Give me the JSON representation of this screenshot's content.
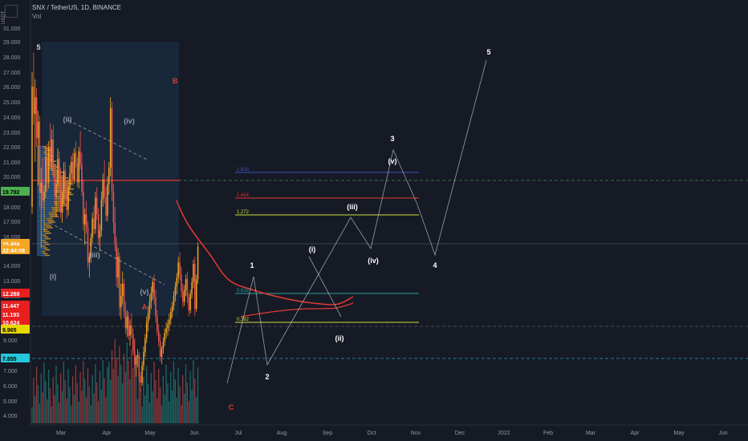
{
  "header": {
    "title": "SNX / TetherUS, 1D, BINANCE",
    "volume_label": "Vol",
    "currency": "USDT"
  },
  "chart_data": {
    "type": "candlestick",
    "symbol": "SNX / TetherUS",
    "interval": "1D",
    "exchange": "BINANCE",
    "x_axis": {
      "ticks": [
        "Mar",
        "Apr",
        "May",
        "Jun",
        "Jul",
        "Aug",
        "Sep",
        "Oct",
        "Nov",
        "Dec",
        "2022",
        "Feb",
        "Mar",
        "Apr",
        "May",
        "Jun"
      ]
    },
    "y_axis": {
      "ticks": [
        "31.000",
        "29.000",
        "28.000",
        "27.000",
        "26.000",
        "25.000",
        "24.000",
        "23.000",
        "22.000",
        "21.000",
        "20.000",
        "19.000",
        "18.000",
        "17.000",
        "16.000",
        "14.000",
        "13.000",
        "12.000",
        "11.000",
        "10.000",
        "9.000",
        "8.000",
        "7.000",
        "6.000",
        "5.000",
        "4.000"
      ]
    },
    "price_tags": [
      {
        "value": "19.792",
        "color": "#4caf50"
      },
      {
        "value": "15.494",
        "color": "#f5a623"
      },
      {
        "value": "22:44:08",
        "color": "#f5a623"
      },
      {
        "value": "12.268",
        "color": "#e91e1e"
      },
      {
        "value": "11.447",
        "color": "#e91e1e"
      },
      {
        "value": "11.193",
        "color": "#e91e1e"
      },
      {
        "value": "10.624",
        "color": "#e91e1e"
      },
      {
        "value": "9.965",
        "color": "#e6d800"
      },
      {
        "value": "7.855",
        "color": "#26c6da"
      }
    ],
    "fib_levels": [
      {
        "label": "1.618",
        "color": "#3f51b5"
      },
      {
        "label": "1.414",
        "color": "#e53935"
      },
      {
        "label": "1.272",
        "color": "#cddc39"
      },
      {
        "label": "0.618",
        "color": "#26a69a"
      },
      {
        "label": "0.382",
        "color": "#cddc39"
      }
    ],
    "wave_labels": [
      "5",
      "B",
      "(ii)",
      "(iv)",
      "(iii)",
      "(v)",
      "(i)",
      "A",
      "1",
      "2",
      "C",
      "(i)",
      "(ii)",
      "(iii)",
      "(iv)",
      "(v)",
      "3",
      "4",
      "5"
    ],
    "ohlc": [
      [
        18.0,
        27.0,
        17.5,
        26.0
      ],
      [
        26.0,
        28.3,
        23.5,
        24.2
      ],
      [
        24.2,
        26.5,
        21.0,
        25.3
      ],
      [
        25.3,
        25.9,
        22.0,
        22.6
      ],
      [
        22.6,
        24.4,
        19.4,
        23.7
      ],
      [
        23.7,
        24.1,
        18.0,
        18.9
      ],
      [
        18.9,
        20.6,
        15.2,
        19.6
      ],
      [
        19.6,
        21.3,
        17.9,
        18.4
      ],
      [
        18.4,
        19.4,
        16.3,
        19.0
      ],
      [
        19.0,
        22.0,
        18.6,
        21.3
      ],
      [
        21.3,
        22.2,
        19.0,
        19.6
      ],
      [
        19.6,
        22.4,
        19.2,
        22.0
      ],
      [
        22.0,
        23.6,
        20.6,
        21.0
      ],
      [
        21.0,
        23.2,
        20.4,
        22.5
      ],
      [
        22.5,
        23.5,
        19.9,
        20.2
      ],
      [
        20.2,
        20.9,
        18.1,
        18.7
      ],
      [
        18.7,
        19.8,
        17.3,
        19.5
      ],
      [
        19.5,
        21.9,
        18.9,
        21.2
      ],
      [
        21.2,
        21.7,
        19.0,
        19.4
      ],
      [
        19.4,
        20.6,
        17.2,
        17.6
      ],
      [
        17.6,
        19.0,
        16.9,
        18.6
      ],
      [
        18.6,
        21.0,
        18.2,
        20.4
      ],
      [
        20.4,
        21.0,
        18.6,
        19.0
      ],
      [
        19.0,
        19.6,
        17.2,
        17.8
      ],
      [
        17.8,
        19.8,
        17.4,
        19.3
      ],
      [
        19.3,
        20.8,
        18.8,
        20.2
      ],
      [
        20.2,
        21.4,
        19.4,
        21.0
      ],
      [
        21.0,
        21.6,
        19.4,
        19.8
      ],
      [
        19.8,
        21.9,
        19.5,
        21.6
      ],
      [
        21.6,
        22.4,
        20.6,
        20.9
      ],
      [
        20.9,
        21.3,
        19.3,
        19.6
      ],
      [
        19.6,
        22.0,
        19.2,
        21.7
      ],
      [
        21.7,
        23.1,
        20.5,
        20.8
      ],
      [
        20.8,
        21.6,
        18.7,
        19.0
      ],
      [
        19.0,
        19.8,
        16.4,
        16.8
      ],
      [
        16.8,
        17.9,
        15.4,
        17.5
      ],
      [
        17.5,
        18.4,
        16.2,
        16.6
      ],
      [
        16.6,
        17.0,
        13.8,
        14.2
      ],
      [
        14.2,
        14.9,
        13.2,
        14.6
      ],
      [
        14.6,
        16.2,
        14.2,
        15.9
      ],
      [
        15.9,
        17.6,
        15.5,
        17.2
      ],
      [
        17.2,
        18.1,
        16.1,
        16.5
      ],
      [
        16.5,
        19.0,
        16.2,
        18.6
      ],
      [
        18.6,
        19.3,
        17.1,
        17.5
      ],
      [
        17.5,
        17.9,
        15.4,
        15.9
      ],
      [
        15.9,
        16.8,
        15.0,
        16.4
      ],
      [
        16.4,
        19.0,
        16.0,
        18.5
      ],
      [
        18.5,
        20.2,
        18.0,
        19.8
      ],
      [
        19.8,
        21.1,
        18.2,
        18.6
      ],
      [
        18.6,
        19.3,
        17.0,
        17.4
      ],
      [
        17.4,
        20.0,
        17.0,
        19.5
      ],
      [
        19.5,
        21.0,
        18.8,
        20.6
      ],
      [
        20.6,
        25.3,
        20.0,
        24.6
      ],
      [
        24.6,
        25.0,
        18.4,
        19.0
      ],
      [
        19.0,
        19.5,
        16.2,
        16.9
      ],
      [
        16.9,
        18.0,
        15.0,
        15.5
      ],
      [
        15.5,
        16.0,
        12.6,
        13.2
      ],
      [
        13.2,
        15.2,
        12.5,
        14.6
      ],
      [
        14.6,
        14.9,
        10.6,
        11.2
      ],
      [
        11.2,
        12.8,
        10.4,
        12.0
      ],
      [
        12.0,
        13.6,
        11.4,
        12.8
      ],
      [
        12.8,
        13.1,
        10.5,
        10.9
      ],
      [
        10.9,
        11.6,
        9.4,
        9.8
      ],
      [
        9.8,
        11.0,
        9.2,
        10.6
      ],
      [
        10.6,
        10.9,
        9.0,
        9.3
      ],
      [
        9.3,
        10.4,
        8.6,
        10.0
      ],
      [
        10.0,
        10.8,
        9.1,
        9.4
      ],
      [
        9.4,
        9.8,
        8.0,
        8.3
      ],
      [
        8.3,
        9.0,
        7.1,
        7.4
      ],
      [
        7.4,
        8.0,
        6.6,
        7.8
      ],
      [
        7.8,
        8.4,
        7.2,
        8.0
      ],
      [
        8.0,
        8.2,
        6.2,
        6.6
      ],
      [
        6.6,
        6.9,
        5.6,
        6.2
      ],
      [
        6.2,
        7.6,
        6.0,
        7.3
      ],
      [
        7.3,
        8.6,
        7.0,
        8.2
      ],
      [
        8.2,
        9.4,
        7.9,
        9.1
      ],
      [
        9.1,
        10.6,
        8.8,
        10.2
      ],
      [
        10.2,
        11.3,
        9.6,
        10.8
      ],
      [
        10.8,
        12.1,
        10.4,
        11.6
      ],
      [
        11.6,
        12.6,
        11.1,
        12.2
      ],
      [
        12.2,
        13.2,
        11.7,
        12.9
      ],
      [
        12.9,
        13.4,
        11.4,
        11.9
      ],
      [
        11.9,
        12.4,
        10.2,
        10.6
      ],
      [
        10.6,
        11.0,
        9.3,
        9.6
      ],
      [
        9.6,
        10.1,
        8.6,
        8.9
      ],
      [
        8.9,
        9.4,
        7.6,
        7.9
      ],
      [
        7.9,
        8.6,
        7.4,
        8.4
      ],
      [
        8.4,
        9.2,
        8.1,
        8.9
      ],
      [
        8.9,
        9.8,
        8.6,
        9.5
      ],
      [
        9.5,
        10.2,
        9.1,
        9.8
      ],
      [
        9.8,
        10.4,
        9.3,
        10.1
      ],
      [
        10.1,
        10.8,
        9.6,
        10.4
      ],
      [
        10.4,
        11.2,
        10.0,
        10.9
      ],
      [
        10.9,
        11.6,
        10.5,
        11.3
      ],
      [
        11.3,
        12.3,
        11.0,
        12.0
      ],
      [
        12.0,
        12.9,
        11.6,
        12.6
      ],
      [
        12.6,
        13.5,
        12.1,
        13.2
      ],
      [
        13.2,
        14.6,
        12.8,
        14.2
      ],
      [
        14.2,
        14.9,
        13.0,
        13.4
      ],
      [
        13.4,
        13.9,
        11.9,
        12.3
      ],
      [
        12.3,
        12.8,
        11.2,
        11.6
      ],
      [
        11.6,
        12.7,
        11.3,
        12.4
      ],
      [
        12.4,
        13.4,
        12.0,
        13.1
      ],
      [
        13.1,
        13.6,
        11.5,
        11.9
      ],
      [
        11.9,
        12.2,
        10.6,
        11.0
      ],
      [
        11.0,
        12.4,
        10.8,
        12.1
      ],
      [
        12.1,
        13.2,
        11.8,
        12.9
      ],
      [
        12.9,
        14.4,
        12.5,
        14.1
      ],
      [
        14.1,
        14.6,
        10.6,
        11.1
      ],
      [
        11.1,
        13.4,
        10.9,
        13.1
      ],
      [
        13.1,
        15.6,
        12.8,
        15.3
      ]
    ]
  }
}
